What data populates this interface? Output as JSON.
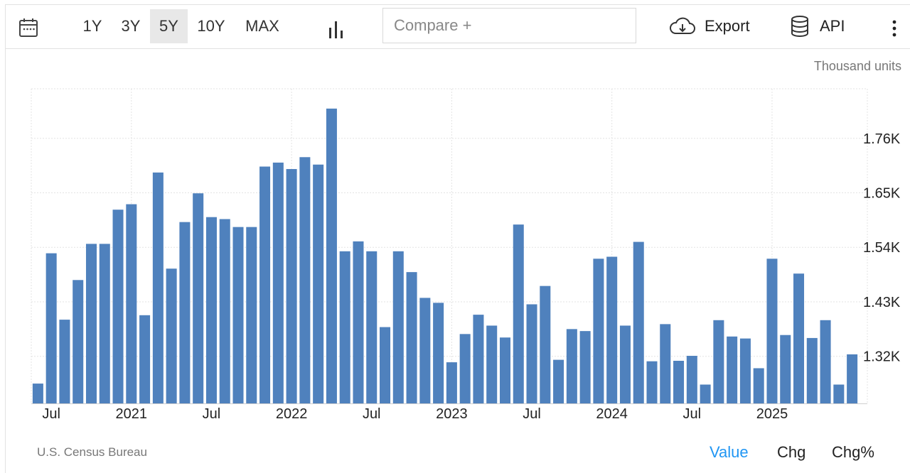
{
  "toolbar": {
    "ranges": [
      {
        "label": "1Y",
        "active": false
      },
      {
        "label": "3Y",
        "active": false
      },
      {
        "label": "5Y",
        "active": true
      },
      {
        "label": "10Y",
        "active": false
      },
      {
        "label": "MAX",
        "active": false
      }
    ],
    "compare_placeholder": "Compare +",
    "export_label": "Export",
    "api_label": "API",
    "icons": [
      "calendar-icon",
      "bar-chart-icon",
      "cloud-download-icon",
      "database-icon",
      "more-vertical-icon"
    ]
  },
  "chart_data": {
    "type": "bar",
    "units_label": "Thousand units",
    "x_tick_labels": [
      "Jul",
      "2021",
      "Jul",
      "2022",
      "Jul",
      "2023",
      "Jul",
      "2024",
      "Jul",
      "2025"
    ],
    "y_tick_labels": [
      "1.76K",
      "1.65K",
      "1.54K",
      "1.43K",
      "1.32K"
    ],
    "y_ticks": [
      1760,
      1650,
      1540,
      1430,
      1320
    ],
    "ylim": [
      1225,
      1860
    ],
    "grid": true,
    "bar_color": "#4f81bd",
    "start_month": "2020-06",
    "values": [
      1265,
      1528,
      1394,
      1474,
      1547,
      1547,
      1616,
      1627,
      1403,
      1691,
      1497,
      1591,
      1649,
      1601,
      1597,
      1581,
      1581,
      1703,
      1711,
      1698,
      1722,
      1707,
      1820,
      1532,
      1552,
      1532,
      1379,
      1532,
      1490,
      1438,
      1428,
      1308,
      1365,
      1404,
      1382,
      1358,
      1586,
      1425,
      1462,
      1313,
      1375,
      1371,
      1517,
      1521,
      1382,
      1551,
      1310,
      1385,
      1311,
      1321,
      1263,
      1393,
      1360,
      1356,
      1296,
      1517,
      1363,
      1487,
      1357,
      1393,
      1263,
      1324
    ]
  },
  "footer": {
    "source": "U.S. Census Bureau",
    "modes": [
      {
        "label": "Value",
        "active": true
      },
      {
        "label": "Chg",
        "active": false
      },
      {
        "label": "Chg%",
        "active": false
      }
    ]
  }
}
